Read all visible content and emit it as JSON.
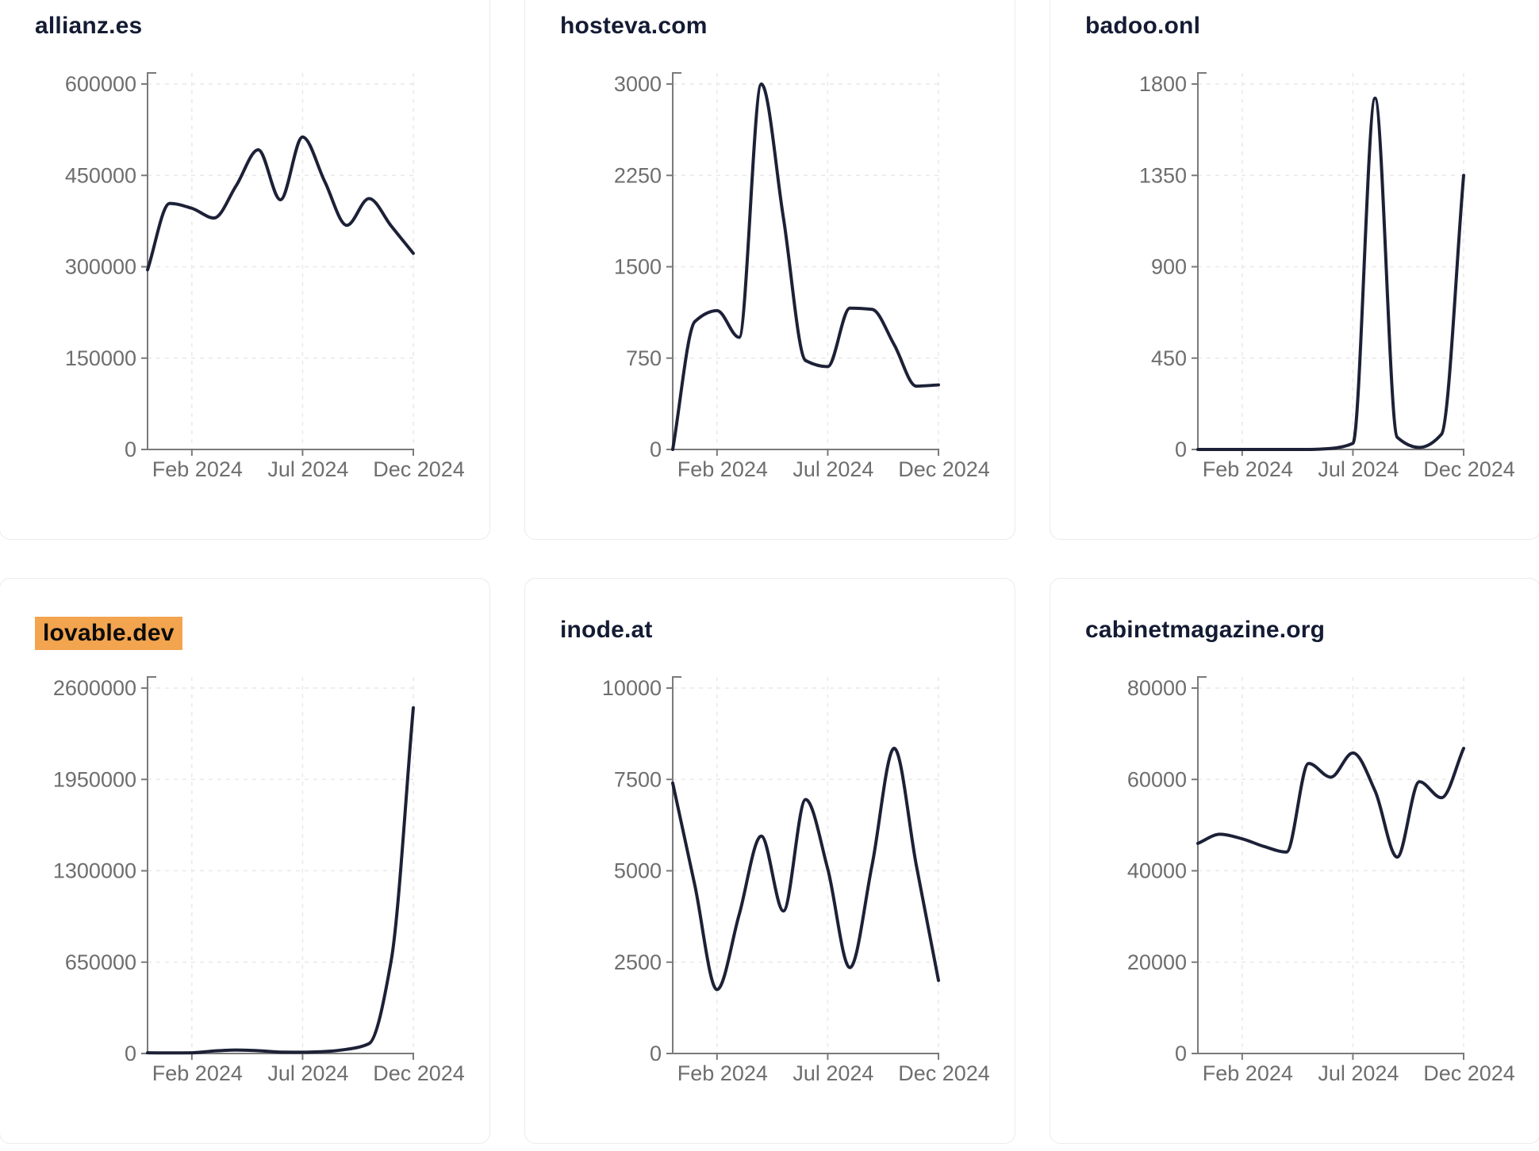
{
  "colors": {
    "line": "#1c2137",
    "axis": "#7a7a7a",
    "tick_label": "#6e6e6e",
    "grid": "#e9e9e9",
    "title": "#141b33",
    "card_border": "#e9ebee",
    "highlight_bg": "#f2a44f",
    "background": "#ffffff"
  },
  "chart_data": [
    {
      "type": "line",
      "title": "allianz.es",
      "title_highlighted": false,
      "x": [
        "Dec 2023",
        "Jan 2024",
        "Feb 2024",
        "Mar 2024",
        "Apr 2024",
        "May 2024",
        "Jun 2024",
        "Jul 2024",
        "Aug 2024",
        "Sep 2024",
        "Oct 2024",
        "Nov 2024",
        "Dec 2024"
      ],
      "values": [
        295000,
        404000,
        396000,
        380000,
        433000,
        492000,
        410000,
        513000,
        440000,
        368000,
        412000,
        367000,
        322000
      ],
      "y_ticks": [
        0,
        150000,
        300000,
        450000,
        600000
      ],
      "ylim": [
        0,
        600000
      ],
      "x_tick_labels": [
        "Feb 2024",
        "Jul 2024",
        "Dec 2024"
      ],
      "x_tick_indices": [
        2,
        7,
        12
      ],
      "grid": true,
      "legend": false
    },
    {
      "type": "line",
      "title": "hosteva.com",
      "title_highlighted": false,
      "x": [
        "Dec 2023",
        "Jan 2024",
        "Feb 2024",
        "Mar 2024",
        "Apr 2024",
        "May 2024",
        "Jun 2024",
        "Jul 2024",
        "Aug 2024",
        "Sep 2024",
        "Oct 2024",
        "Nov 2024",
        "Dec 2024"
      ],
      "values": [
        0,
        1050,
        1140,
        920,
        3000,
        1900,
        730,
        680,
        1160,
        1150,
        860,
        520,
        530
      ],
      "y_ticks": [
        0,
        750,
        1500,
        2250,
        3000
      ],
      "ylim": [
        0,
        3000
      ],
      "x_tick_labels": [
        "Feb 2024",
        "Jul 2024",
        "Dec 2024"
      ],
      "x_tick_indices": [
        2,
        7,
        12
      ],
      "grid": true,
      "legend": false
    },
    {
      "type": "line",
      "title": "badoo.onl",
      "title_highlighted": false,
      "x": [
        "Dec 2023",
        "Jan 2024",
        "Feb 2024",
        "Mar 2024",
        "Apr 2024",
        "May 2024",
        "Jun 2024",
        "Jul 2024",
        "Aug 2024",
        "Sep 2024",
        "Oct 2024",
        "Nov 2024",
        "Dec 2024"
      ],
      "values": [
        0,
        0,
        0,
        0,
        0,
        0,
        5,
        30,
        1730,
        60,
        10,
        75,
        1350
      ],
      "y_ticks": [
        0,
        450,
        900,
        1350,
        1800
      ],
      "ylim": [
        0,
        1800
      ],
      "x_tick_labels": [
        "Feb 2024",
        "Jul 2024",
        "Dec 2024"
      ],
      "x_tick_indices": [
        2,
        7,
        12
      ],
      "grid": true,
      "legend": false
    },
    {
      "type": "line",
      "title": "lovable.dev",
      "title_highlighted": true,
      "x": [
        "Dec 2023",
        "Jan 2024",
        "Feb 2024",
        "Mar 2024",
        "Apr 2024",
        "May 2024",
        "Jun 2024",
        "Jul 2024",
        "Aug 2024",
        "Sep 2024",
        "Oct 2024",
        "Nov 2024",
        "Dec 2024"
      ],
      "values": [
        5000,
        4000,
        5000,
        18000,
        25000,
        20000,
        10000,
        9000,
        14000,
        30000,
        70000,
        660000,
        2460000
      ],
      "y_ticks": [
        0,
        650000,
        1300000,
        1950000,
        2600000
      ],
      "ylim": [
        0,
        2600000
      ],
      "x_tick_labels": [
        "Feb 2024",
        "Jul 2024",
        "Dec 2024"
      ],
      "x_tick_indices": [
        2,
        7,
        12
      ],
      "grid": true,
      "legend": false
    },
    {
      "type": "line",
      "title": "inode.at",
      "title_highlighted": false,
      "x": [
        "Dec 2023",
        "Jan 2024",
        "Feb 2024",
        "Mar 2024",
        "Apr 2024",
        "May 2024",
        "Jun 2024",
        "Jul 2024",
        "Aug 2024",
        "Sep 2024",
        "Oct 2024",
        "Nov 2024",
        "Dec 2024"
      ],
      "values": [
        7400,
        4600,
        1750,
        3800,
        5950,
        3900,
        6950,
        5050,
        2350,
        5150,
        8350,
        5150,
        2000
      ],
      "y_ticks": [
        0,
        2500,
        5000,
        7500,
        10000
      ],
      "ylim": [
        0,
        10000
      ],
      "x_tick_labels": [
        "Feb 2024",
        "Jul 2024",
        "Dec 2024"
      ],
      "x_tick_indices": [
        2,
        7,
        12
      ],
      "grid": true,
      "legend": false
    },
    {
      "type": "line",
      "title": "cabinetmagazine.org",
      "title_highlighted": false,
      "x": [
        "Dec 2023",
        "Jan 2024",
        "Feb 2024",
        "Mar 2024",
        "Apr 2024",
        "May 2024",
        "Jun 2024",
        "Jul 2024",
        "Aug 2024",
        "Sep 2024",
        "Oct 2024",
        "Nov 2024",
        "Dec 2024"
      ],
      "values": [
        46000,
        48000,
        47000,
        45300,
        44100,
        63500,
        60500,
        65800,
        57500,
        43000,
        59500,
        56000,
        66800
      ],
      "y_ticks": [
        0,
        20000,
        40000,
        60000,
        80000
      ],
      "ylim": [
        0,
        80000
      ],
      "x_tick_labels": [
        "Feb 2024",
        "Jul 2024",
        "Dec 2024"
      ],
      "x_tick_indices": [
        2,
        7,
        12
      ],
      "grid": true,
      "legend": false
    }
  ]
}
